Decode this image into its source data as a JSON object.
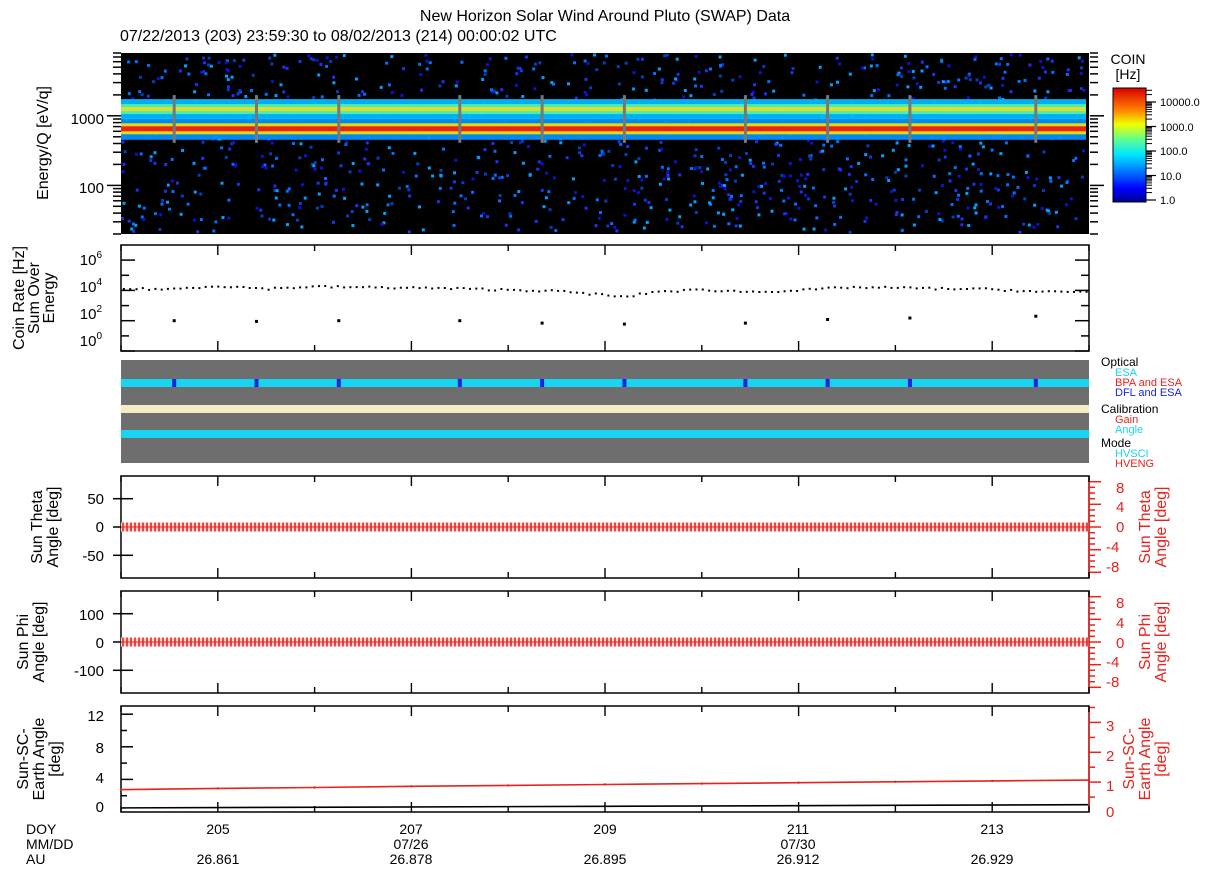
{
  "header": {
    "title": "New Horizon Solar Wind Around Pluto (SWAP) Data",
    "subtitle": "07/22/2013 (203) 23:59:30 to 08/02/2013 (214) 00:00:02 UTC"
  },
  "colors": {
    "frame": "#000000",
    "red": "#e8231e",
    "cyan": "#19d4f0",
    "blue": "#1a22e8",
    "cream": "#f4ecc4",
    "gray": "#6e6e6e",
    "spectrogram_bg": "#000000"
  },
  "colorbar": {
    "title_line1": "COIN",
    "title_line2": "[Hz]",
    "ticks": [
      "10000.0",
      "1000.0",
      "100.0",
      "10.0",
      "1.0"
    ]
  },
  "chart_data": [
    {
      "type": "heatmap",
      "panel": "spectrogram",
      "ylabel": "Energy/Q [eV/q]",
      "yscale": "log",
      "ylim": [
        20,
        8000
      ],
      "xlim": [
        204,
        214
      ],
      "ytick_labels": [
        "1000",
        "100"
      ],
      "bands": [
        {
          "energy": 650,
          "intensity": "10000.0"
        },
        {
          "energy": 1250,
          "intensity": "1000.0"
        }
      ],
      "calibration_gaps_doy": [
        204.55,
        205.4,
        206.25,
        207.5,
        208.35,
        209.2,
        210.45,
        211.3,
        212.15,
        213.45
      ]
    },
    {
      "type": "scatter",
      "panel": "coin_rate",
      "ylabel_lines": [
        "Coin Rate [Hz]",
        "Sum Over",
        "Energy"
      ],
      "yscale": "log",
      "ylim": [
        1,
        10000000
      ],
      "ytick_labels": [
        "10^6",
        "10^4",
        "10^2",
        "10^0"
      ],
      "main_series": [
        {
          "x": 204.0,
          "y": 13000
        },
        {
          "x": 204.5,
          "y": 12000
        },
        {
          "x": 205.0,
          "y": 20000
        },
        {
          "x": 205.5,
          "y": 13000
        },
        {
          "x": 206.0,
          "y": 18000
        },
        {
          "x": 206.5,
          "y": 16000
        },
        {
          "x": 207.0,
          "y": 15000
        },
        {
          "x": 207.5,
          "y": 13000
        },
        {
          "x": 208.0,
          "y": 11000
        },
        {
          "x": 208.5,
          "y": 9000
        },
        {
          "x": 209.0,
          "y": 5000
        },
        {
          "x": 209.2,
          "y": 3500
        },
        {
          "x": 209.5,
          "y": 8000
        },
        {
          "x": 210.0,
          "y": 11000
        },
        {
          "x": 210.5,
          "y": 8000
        },
        {
          "x": 211.0,
          "y": 10000
        },
        {
          "x": 211.5,
          "y": 16000
        },
        {
          "x": 212.0,
          "y": 15000
        },
        {
          "x": 212.5,
          "y": 13000
        },
        {
          "x": 213.0,
          "y": 12000
        },
        {
          "x": 213.5,
          "y": 8000
        },
        {
          "x": 214.0,
          "y": 8000
        }
      ],
      "calibration_points": [
        {
          "x": 204.55,
          "y": 100
        },
        {
          "x": 205.4,
          "y": 90
        },
        {
          "x": 206.25,
          "y": 100
        },
        {
          "x": 207.5,
          "y": 100
        },
        {
          "x": 208.35,
          "y": 70
        },
        {
          "x": 209.2,
          "y": 60
        },
        {
          "x": 210.45,
          "y": 70
        },
        {
          "x": 211.3,
          "y": 120
        },
        {
          "x": 212.15,
          "y": 150
        },
        {
          "x": 213.45,
          "y": 200
        }
      ]
    },
    {
      "type": "table",
      "panel": "mode_flags",
      "legend": [
        {
          "heading": "Optical",
          "items": [
            {
              "label": "ESA",
              "color": "#19d4f0"
            },
            {
              "label": "BPA and ESA",
              "color": "#e8231e"
            },
            {
              "label": "DFL and ESA",
              "color": "#1a22e8"
            }
          ]
        },
        {
          "heading": "Calibration",
          "items": [
            {
              "label": "Gain",
              "color": "#e8231e"
            },
            {
              "label": "Angle",
              "color": "#19d4f0"
            }
          ]
        },
        {
          "heading": "Mode",
          "items": [
            {
              "label": "HVSCI",
              "color": "#19d4f0"
            },
            {
              "label": "HVENG",
              "color": "#e8231e"
            }
          ]
        }
      ],
      "dfl_marks_doy": [
        204.55,
        205.4,
        206.25,
        207.5,
        208.35,
        209.2,
        210.45,
        211.3,
        212.15,
        213.45
      ]
    },
    {
      "type": "line",
      "panel": "sun_theta",
      "ylabel_lines": [
        "Sun Theta",
        "Angle [deg]"
      ],
      "ylim_left": [
        -90,
        90
      ],
      "ytick_labels_left": [
        "50",
        "0",
        "-50"
      ],
      "ylim_right": [
        -9,
        9
      ],
      "ytick_labels_right": [
        "8",
        "4",
        "0",
        "-4",
        "-8"
      ],
      "value": 0,
      "spread": 0.8
    },
    {
      "type": "line",
      "panel": "sun_phi",
      "ylabel_lines": [
        "Sun Phi",
        "Angle [deg]"
      ],
      "ylim_left": [
        -180,
        180
      ],
      "ytick_labels_left": [
        "100",
        "0",
        "-100"
      ],
      "ylim_right": [
        -9,
        9
      ],
      "ytick_labels_right": [
        "8",
        "4",
        "0",
        "-4",
        "-8"
      ],
      "value": 0,
      "spread": 0.8
    },
    {
      "type": "line",
      "panel": "sun_sc_earth",
      "ylabel_lines": [
        "Sun-SC-",
        "Earth Angle",
        "[deg]"
      ],
      "ylim_left": [
        0,
        13
      ],
      "ytick_labels_left": [
        "12",
        "8",
        "4",
        "0"
      ],
      "ylim_right": [
        0,
        3.55
      ],
      "ytick_labels_right": [
        "3",
        "2",
        "1",
        "0"
      ],
      "series": [
        {
          "x": [
            204,
            205,
            206,
            207,
            208,
            209,
            210,
            211,
            212,
            213,
            214
          ],
          "y": [
            0.75,
            0.79,
            0.82,
            0.86,
            0.89,
            0.92,
            0.95,
            0.98,
            1.01,
            1.04,
            1.07
          ],
          "axis": "right",
          "color": "#e8231e"
        },
        {
          "x": [
            204,
            209,
            214
          ],
          "y": [
            0.5,
            0.7,
            0.9
          ],
          "axis": "left",
          "color": "#000000"
        }
      ]
    }
  ],
  "xaxis": {
    "row_labels": [
      "DOY",
      "MM/DD",
      "AU"
    ],
    "ticks": [
      {
        "doy": "205",
        "date": "",
        "au": "26.861"
      },
      {
        "doy": "207",
        "date": "07/26",
        "au": "26.878"
      },
      {
        "doy": "209",
        "date": "",
        "au": "26.895"
      },
      {
        "doy": "211",
        "date": "07/30",
        "au": "26.912"
      },
      {
        "doy": "213",
        "date": "",
        "au": "26.929"
      }
    ]
  }
}
